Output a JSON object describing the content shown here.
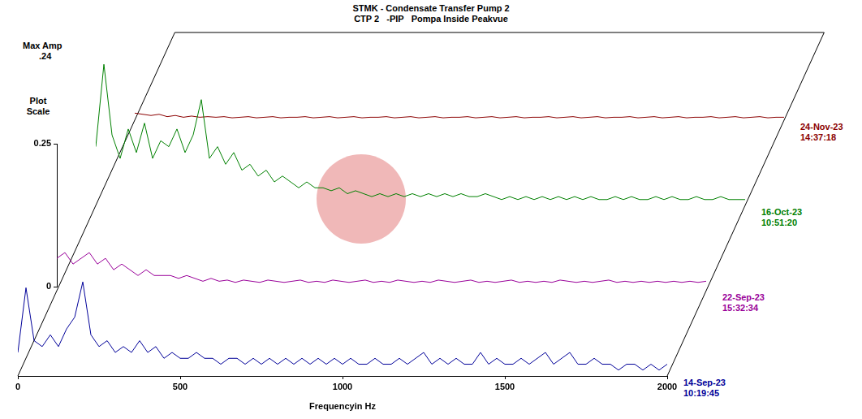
{
  "chart_data": {
    "type": "line",
    "title": "STMK - Condensate Transfer Pump 2",
    "subtitle": "CTP 2   -PIP   Pompa Inside Peakvue",
    "x_label": "Frequencyin Hz",
    "y_label": "Plot Scale",
    "max_amp": {
      "title": "Max Amp",
      "value": ".24"
    },
    "x": [
      0,
      25,
      50,
      75,
      100,
      125,
      150,
      175,
      200,
      225,
      250,
      275,
      300,
      325,
      350,
      375,
      400,
      425,
      450,
      475,
      500,
      525,
      550,
      575,
      600,
      625,
      650,
      675,
      700,
      725,
      750,
      775,
      800,
      825,
      850,
      875,
      900,
      925,
      950,
      975,
      1000,
      1025,
      1050,
      1075,
      1100,
      1125,
      1150,
      1175,
      1200,
      1225,
      1250,
      1275,
      1300,
      1325,
      1350,
      1375,
      1400,
      1425,
      1450,
      1475,
      1500,
      1525,
      1550,
      1575,
      1600,
      1625,
      1650,
      1675,
      1700,
      1725,
      1750,
      1775,
      1800,
      1825,
      1850,
      1875,
      1900,
      1925,
      1950,
      1975,
      2000
    ],
    "series": [
      {
        "name": "14-Sep-23",
        "time": "10:19:45",
        "color": "#000099",
        "values": [
          0.04,
          0.15,
          0.06,
          0.05,
          0.07,
          0.05,
          0.08,
          0.1,
          0.16,
          0.07,
          0.05,
          0.06,
          0.04,
          0.05,
          0.04,
          0.06,
          0.04,
          0.05,
          0.03,
          0.04,
          0.03,
          0.03,
          0.04,
          0.03,
          0.03,
          0.02,
          0.03,
          0.03,
          0.02,
          0.03,
          0.02,
          0.03,
          0.02,
          0.03,
          0.02,
          0.03,
          0.02,
          0.03,
          0.02,
          0.03,
          0.02,
          0.03,
          0.02,
          0.02,
          0.03,
          0.02,
          0.02,
          0.03,
          0.02,
          0.03,
          0.04,
          0.02,
          0.03,
          0.02,
          0.03,
          0.02,
          0.02,
          0.04,
          0.02,
          0.03,
          0.02,
          0.02,
          0.03,
          0.02,
          0.03,
          0.04,
          0.02,
          0.03,
          0.04,
          0.02,
          0.02,
          0.03,
          0.02,
          0.02,
          0.01,
          0.02,
          0.02,
          0.01,
          0.02,
          0.01,
          0.02
        ]
      },
      {
        "name": "22-Sep-23",
        "time": "15:32:34",
        "color": "#990099",
        "values": [
          0.05,
          0.06,
          0.04,
          0.05,
          0.06,
          0.04,
          0.05,
          0.03,
          0.04,
          0.03,
          0.02,
          0.03,
          0.02,
          0.02,
          0.02,
          0.015,
          0.02,
          0.015,
          0.01,
          0.015,
          0.01,
          0.012,
          0.008,
          0.012,
          0.01,
          0.008,
          0.012,
          0.01,
          0.008,
          0.01,
          0.012,
          0.008,
          0.01,
          0.008,
          0.012,
          0.01,
          0.008,
          0.01,
          0.012,
          0.008,
          0.01,
          0.008,
          0.012,
          0.01,
          0.008,
          0.01,
          0.008,
          0.012,
          0.01,
          0.008,
          0.01,
          0.012,
          0.008,
          0.01,
          0.008,
          0.01,
          0.012,
          0.008,
          0.01,
          0.008,
          0.01,
          0.008,
          0.012,
          0.01,
          0.008,
          0.01,
          0.008,
          0.01,
          0.012,
          0.008,
          0.01,
          0.008,
          0.01,
          0.008,
          0.01,
          0.008,
          0.01,
          0.008,
          0.01,
          0.008,
          0.01
        ]
      },
      {
        "name": "16-Oct-23",
        "time": "10:51:20",
        "color": "#008000",
        "values": [
          0.1,
          0.24,
          0.12,
          0.08,
          0.13,
          0.09,
          0.14,
          0.08,
          0.11,
          0.1,
          0.13,
          0.09,
          0.12,
          0.18,
          0.08,
          0.1,
          0.07,
          0.09,
          0.06,
          0.07,
          0.05,
          0.06,
          0.04,
          0.05,
          0.04,
          0.03,
          0.04,
          0.03,
          0.03,
          0.025,
          0.03,
          0.02,
          0.025,
          0.02,
          0.015,
          0.02,
          0.015,
          0.02,
          0.015,
          0.02,
          0.015,
          0.02,
          0.015,
          0.02,
          0.015,
          0.02,
          0.015,
          0.015,
          0.02,
          0.015,
          0.01,
          0.015,
          0.01,
          0.015,
          0.01,
          0.015,
          0.01,
          0.015,
          0.01,
          0.015,
          0.01,
          0.015,
          0.01,
          0.01,
          0.015,
          0.01,
          0.015,
          0.01,
          0.01,
          0.015,
          0.01,
          0.015,
          0.01,
          0.01,
          0.015,
          0.01,
          0.01,
          0.015,
          0.01,
          0.01,
          0.01
        ]
      },
      {
        "name": "24-Nov-23",
        "time": "14:37:18",
        "color": "#8b0000",
        "values": [
          0.012,
          0.01,
          0.008,
          0.01,
          0.006,
          0.008,
          0.005,
          0.007,
          0.005,
          0.006,
          0.005,
          0.006,
          0.004,
          0.005,
          0.006,
          0.004,
          0.005,
          0.006,
          0.004,
          0.005,
          0.005,
          0.006,
          0.004,
          0.005,
          0.006,
          0.004,
          0.005,
          0.006,
          0.004,
          0.005,
          0.005,
          0.006,
          0.004,
          0.005,
          0.006,
          0.004,
          0.005,
          0.006,
          0.004,
          0.005,
          0.005,
          0.006,
          0.004,
          0.005,
          0.006,
          0.004,
          0.005,
          0.006,
          0.004,
          0.005,
          0.005,
          0.006,
          0.004,
          0.005,
          0.006,
          0.004,
          0.005,
          0.006,
          0.004,
          0.005,
          0.005,
          0.006,
          0.004,
          0.005,
          0.006,
          0.004,
          0.005,
          0.006,
          0.004,
          0.005,
          0.005,
          0.006,
          0.004,
          0.005,
          0.006,
          0.004,
          0.005,
          0.006,
          0.004,
          0.005,
          0.005
        ]
      }
    ],
    "xlim": [
      0,
      2000
    ],
    "xticks": [
      0,
      500,
      1000,
      1500,
      2000
    ],
    "ylim": [
      0,
      0.25
    ],
    "yticks": [
      0,
      0.25
    ],
    "grid": false
  }
}
